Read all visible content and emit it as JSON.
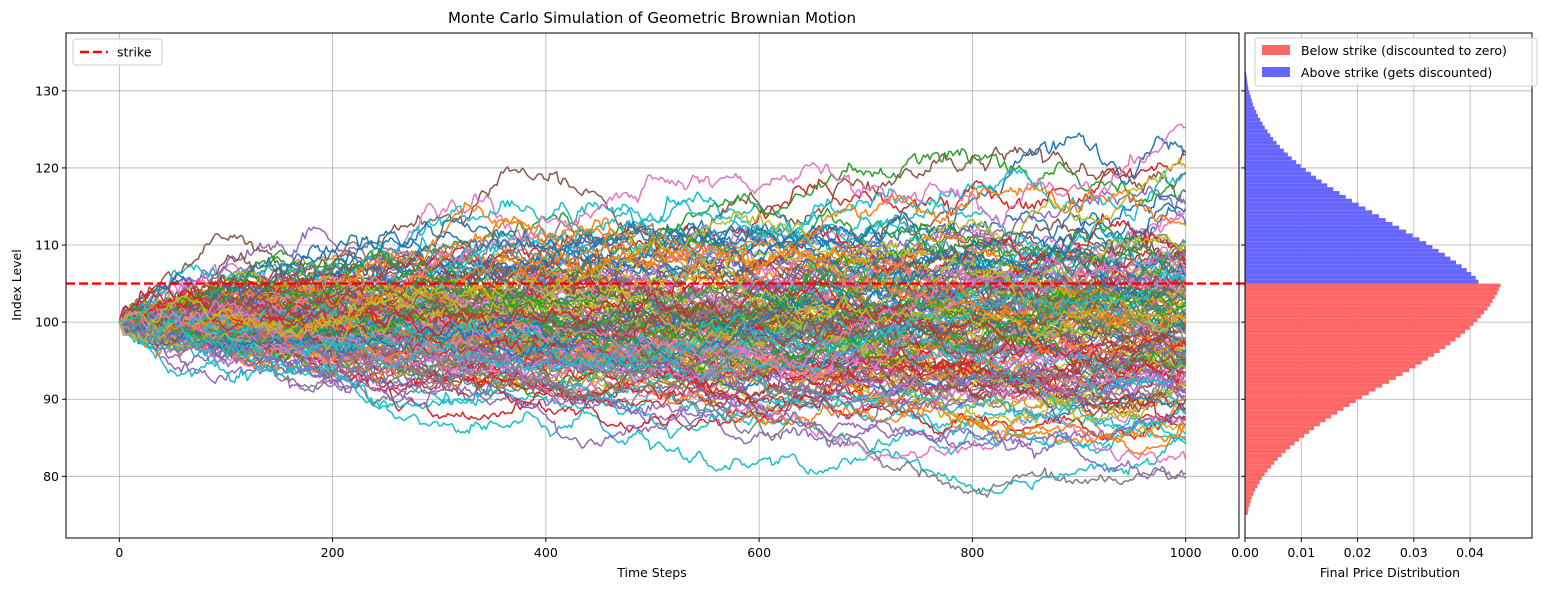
{
  "chart_data": [
    {
      "type": "line",
      "title": "Monte Carlo Simulation of Geometric Brownian Motion",
      "xlabel": "Time Steps",
      "ylabel": "Index Level",
      "xlim": [
        -50,
        1050
      ],
      "ylim": [
        72,
        137.5
      ],
      "xticks": [
        "0",
        "200",
        "400",
        "600",
        "800",
        "1000"
      ],
      "yticks": [
        "80",
        "90",
        "100",
        "110",
        "120",
        "130"
      ],
      "grid": true,
      "legend": {
        "placement": "top-left",
        "entries": [
          "strike"
        ]
      },
      "reference_line": {
        "name": "strike",
        "y": 105,
        "color": "#ff0000",
        "style": "dashed"
      },
      "simulation": {
        "start_value": 100,
        "steps": 1000,
        "final_min": 75.5,
        "final_max": 134.5
      },
      "palette": [
        "#1f77b4",
        "#ff7f0e",
        "#2ca02c",
        "#d62728",
        "#9467bd",
        "#8c564b",
        "#e377c2",
        "#7f7f7f",
        "#bcbd22",
        "#17becf"
      ]
    },
    {
      "type": "bar",
      "orientation": "horizontal",
      "xlabel": "Final Price Distribution",
      "ylabel": "",
      "xlim": [
        0,
        0.051
      ],
      "xticks": [
        "0.00",
        "0.01",
        "0.02",
        "0.03",
        "0.04"
      ],
      "grid": true,
      "legend": {
        "placement": "top-right",
        "entries": [
          "Below strike (discounted to zero)",
          "Above strike (gets discounted)"
        ]
      },
      "bin_width": 0.5,
      "series": [
        {
          "name": "Below strike (discounted to zero)",
          "color": "#ff6666",
          "bins_start": 75.0,
          "values": [
            0.0005,
            0.0006,
            0.0008,
            0.001,
            0.0012,
            0.0015,
            0.0018,
            0.0022,
            0.0026,
            0.003,
            0.0035,
            0.004,
            0.0046,
            0.0052,
            0.0058,
            0.0065,
            0.0072,
            0.008,
            0.0088,
            0.0096,
            0.0105,
            0.0114,
            0.0123,
            0.0133,
            0.0143,
            0.0153,
            0.0164,
            0.0175,
            0.0186,
            0.0197,
            0.0208,
            0.022,
            0.0232,
            0.0244,
            0.0256,
            0.0268,
            0.028,
            0.0292,
            0.0303,
            0.0314,
            0.0325,
            0.0336,
            0.0346,
            0.0356,
            0.0365,
            0.0374,
            0.0383,
            0.0391,
            0.0399,
            0.0406,
            0.0413,
            0.0419,
            0.0425,
            0.0431,
            0.0436,
            0.044,
            0.0444,
            0.0448,
            0.0451,
            0.0454
          ]
        },
        {
          "name": "Above strike (gets discounted)",
          "color": "#6666ff",
          "bins_start": 105.0,
          "values": [
            0.0415,
            0.041,
            0.0402,
            0.0394,
            0.0385,
            0.0375,
            0.0365,
            0.0355,
            0.0344,
            0.0333,
            0.0322,
            0.031,
            0.0298,
            0.0286,
            0.0274,
            0.0262,
            0.025,
            0.0238,
            0.0226,
            0.0214,
            0.0202,
            0.019,
            0.0179,
            0.0168,
            0.0157,
            0.0146,
            0.0136,
            0.0126,
            0.0117,
            0.0108,
            0.0099,
            0.0091,
            0.0083,
            0.0076,
            0.0069,
            0.0062,
            0.0056,
            0.005,
            0.0045,
            0.004,
            0.0035,
            0.0031,
            0.0027,
            0.0023,
            0.002,
            0.0017,
            0.0014,
            0.0012,
            0.001,
            0.0008,
            0.0006,
            0.0005,
            0.0004,
            0.0003,
            0.0002,
            0.0001,
            0.0001,
            5e-05,
            3e-05,
            2e-05
          ]
        }
      ]
    }
  ]
}
